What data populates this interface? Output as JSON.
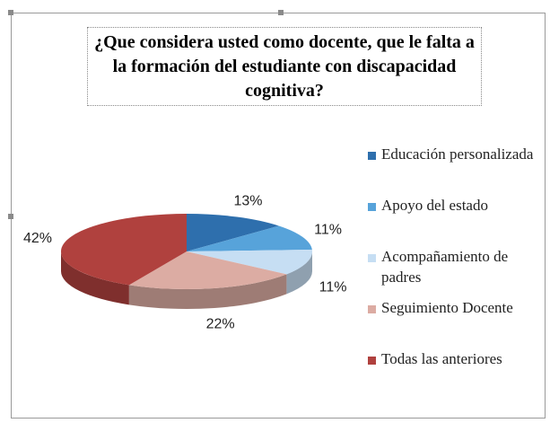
{
  "chart_data": {
    "type": "pie",
    "title": "¿Que considera usted como docente, que le falta a la formación del estudiante con discapacidad cognitiva?",
    "categories": [
      "Educación personalizada",
      "Apoyo del estado",
      "Acompañamiento de padres",
      "Seguimiento Docente",
      "Todas las anteriores"
    ],
    "values": [
      13,
      11,
      11,
      22,
      42
    ],
    "value_labels": [
      "13%",
      "11%",
      "11%",
      "22%",
      "42%"
    ],
    "colors": [
      "#2e6fad",
      "#57a3da",
      "#c6def3",
      "#dcaca3",
      "#b0413e"
    ],
    "legend": "right"
  }
}
